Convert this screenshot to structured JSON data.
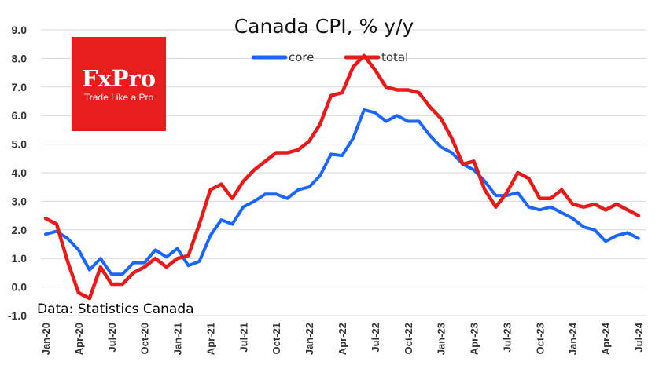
{
  "chart_data": {
    "type": "line",
    "title": "Canada CPI, % y/y",
    "source_note": "Data: Statistics Canada",
    "xlabel": "",
    "ylabel": "",
    "ylim": [
      -1.0,
      9.0
    ],
    "yticks": [
      "-1.0",
      "0.0",
      "1.0",
      "2.0",
      "3.0",
      "4.0",
      "5.0",
      "6.0",
      "7.0",
      "8.0",
      "9.0"
    ],
    "grid": true,
    "legend": "top-center",
    "x_tick_labels": [
      "Jan-20",
      "Apr-20",
      "Jul-20",
      "Oct-20",
      "Jan-21",
      "Apr-21",
      "Jul-21",
      "Oct-21",
      "Jan-22",
      "Apr-22",
      "Jul-22",
      "Oct-22",
      "Jan-23",
      "Apr-23",
      "Jul-23",
      "Oct-23",
      "Jan-24",
      "Apr-24",
      "Jul-24"
    ],
    "x": [
      "2020-01",
      "2020-02",
      "2020-03",
      "2020-04",
      "2020-05",
      "2020-06",
      "2020-07",
      "2020-08",
      "2020-09",
      "2020-10",
      "2020-11",
      "2020-12",
      "2021-01",
      "2021-02",
      "2021-03",
      "2021-04",
      "2021-05",
      "2021-06",
      "2021-07",
      "2021-08",
      "2021-09",
      "2021-10",
      "2021-11",
      "2021-12",
      "2022-01",
      "2022-02",
      "2022-03",
      "2022-04",
      "2022-05",
      "2022-06",
      "2022-07",
      "2022-08",
      "2022-09",
      "2022-10",
      "2022-11",
      "2022-12",
      "2023-01",
      "2023-02",
      "2023-03",
      "2023-04",
      "2023-05",
      "2023-06",
      "2023-07",
      "2023-08",
      "2023-09",
      "2023-10",
      "2023-11",
      "2023-12",
      "2024-01",
      "2024-02",
      "2024-03",
      "2024-04",
      "2024-05",
      "2024-06",
      "2024-07"
    ],
    "series": [
      {
        "name": "core",
        "color": "#1a66ff",
        "values": [
          1.85,
          1.95,
          1.7,
          1.3,
          0.6,
          1.0,
          0.45,
          0.45,
          0.85,
          0.85,
          1.3,
          1.05,
          1.35,
          0.75,
          0.9,
          1.8,
          2.35,
          2.2,
          2.8,
          3.0,
          3.25,
          3.25,
          3.1,
          3.4,
          3.5,
          3.9,
          4.65,
          4.6,
          5.2,
          6.2,
          6.1,
          5.8,
          6.0,
          5.8,
          5.8,
          5.3,
          4.9,
          4.7,
          4.3,
          4.1,
          3.7,
          3.2,
          3.2,
          3.3,
          2.8,
          2.7,
          2.8,
          2.6,
          2.4,
          2.1,
          2.0,
          1.6,
          1.8,
          1.9,
          1.7
        ]
      },
      {
        "name": "total",
        "color": "#e81a1a",
        "values": [
          2.4,
          2.2,
          0.9,
          -0.2,
          -0.4,
          0.7,
          0.1,
          0.1,
          0.5,
          0.7,
          1.0,
          0.7,
          1.0,
          1.1,
          2.2,
          3.4,
          3.6,
          3.1,
          3.7,
          4.1,
          4.4,
          4.7,
          4.7,
          4.8,
          5.1,
          5.7,
          6.7,
          6.8,
          7.7,
          8.1,
          7.6,
          7.0,
          6.9,
          6.9,
          6.8,
          6.3,
          5.9,
          5.2,
          4.3,
          4.4,
          3.4,
          2.8,
          3.3,
          4.0,
          3.8,
          3.1,
          3.1,
          3.4,
          2.9,
          2.8,
          2.9,
          2.7,
          2.9,
          2.7,
          2.5
        ]
      }
    ]
  },
  "logo": {
    "brand": "FxPro",
    "tagline": "Trade Like a Pro",
    "background_color": "#e61e1e"
  }
}
